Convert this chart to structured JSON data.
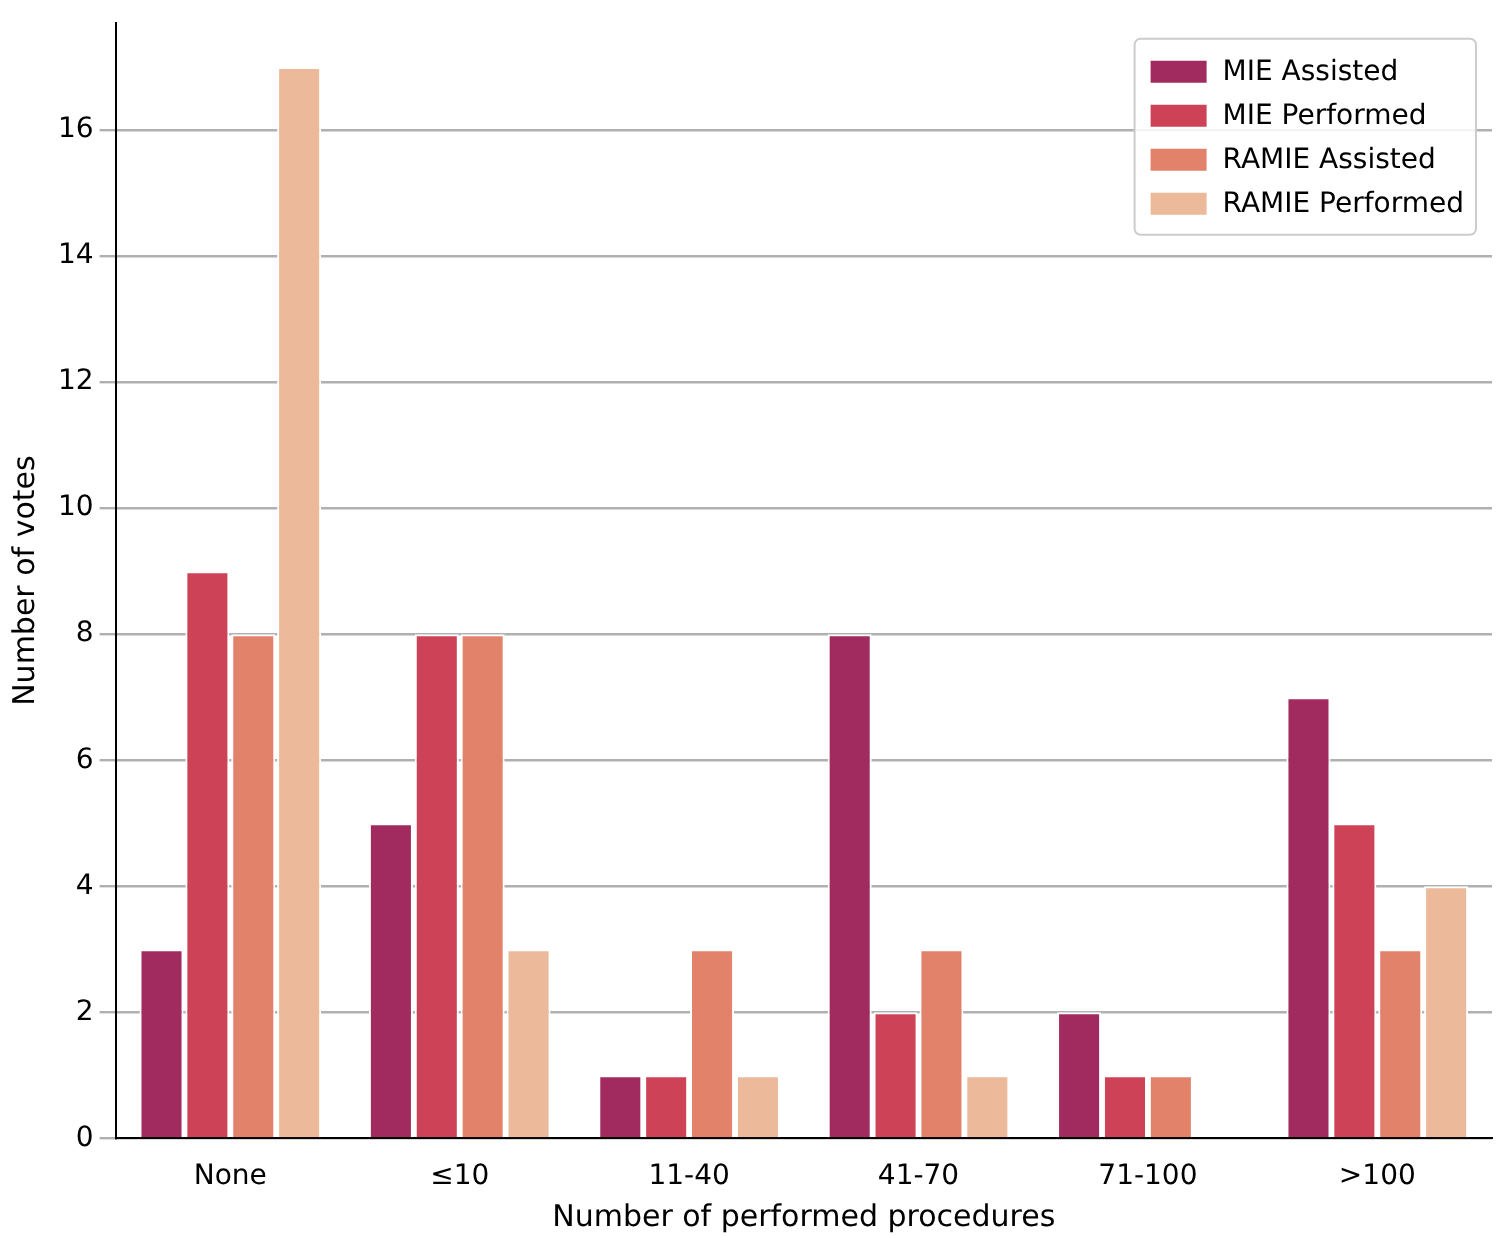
{
  "chart_data": {
    "type": "bar",
    "xlabel": "Number of performed procedures",
    "ylabel": "Number of votes",
    "categories": [
      "None",
      "≤10",
      "11-40",
      "41-70",
      "71-100",
      ">100"
    ],
    "series": [
      {
        "name": "MIE Assisted",
        "color": "#a12a5e",
        "values": [
          3,
          5,
          1,
          8,
          2,
          7
        ]
      },
      {
        "name": "MIE Performed",
        "color": "#cd4257",
        "values": [
          9,
          8,
          1,
          2,
          1,
          5
        ]
      },
      {
        "name": "RAMIE Assisted",
        "color": "#e3826a",
        "values": [
          8,
          8,
          3,
          3,
          1,
          3
        ]
      },
      {
        "name": "RAMIE Performed",
        "color": "#ecb99a",
        "values": [
          17,
          3,
          1,
          1,
          0,
          4
        ]
      }
    ],
    "ylim": [
      0,
      17.7
    ],
    "yticks": [
      0,
      2,
      4,
      6,
      8,
      10,
      12,
      14,
      16
    ],
    "grid": "y",
    "legend": "top right"
  }
}
